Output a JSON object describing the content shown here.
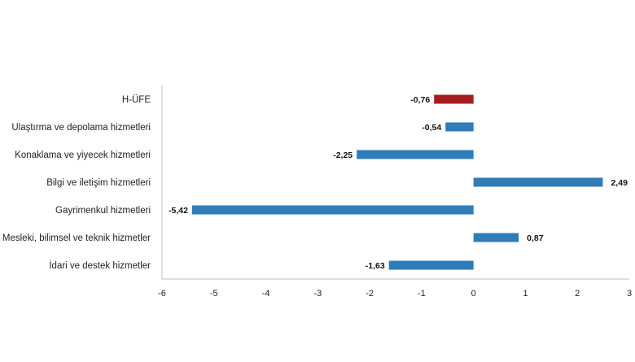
{
  "chart_data": {
    "type": "bar",
    "orientation": "horizontal",
    "title": "",
    "xlabel": "",
    "ylabel": "",
    "categories": [
      "H-ÜFE",
      "Ulaştırma ve depolama hizmetleri",
      "Konaklama ve yiyecek hizmetleri",
      "Bilgi ve iletişim hizmetleri",
      "Gayrimenkul hizmetleri",
      "Mesleki, bilimsel ve teknik hizmetler",
      "İdari ve destek hizmetler"
    ],
    "values": [
      -0.76,
      -0.54,
      -2.25,
      2.49,
      -5.42,
      0.87,
      -1.63
    ],
    "value_labels": [
      "-0,76",
      "-0,54",
      "-2,25",
      "2,49",
      "-5,42",
      "0,87",
      "-1,63"
    ],
    "xlim": [
      -6,
      3
    ],
    "xticks": [
      "-6",
      "-5",
      "-4",
      "-3",
      "-2",
      "-1",
      "0",
      "1",
      "2",
      "3"
    ],
    "grid": false,
    "legend": "none",
    "colors": {
      "highlight": "#A51C1C",
      "bars": "#2E7CB8",
      "axis": "#BFBFBF"
    }
  }
}
